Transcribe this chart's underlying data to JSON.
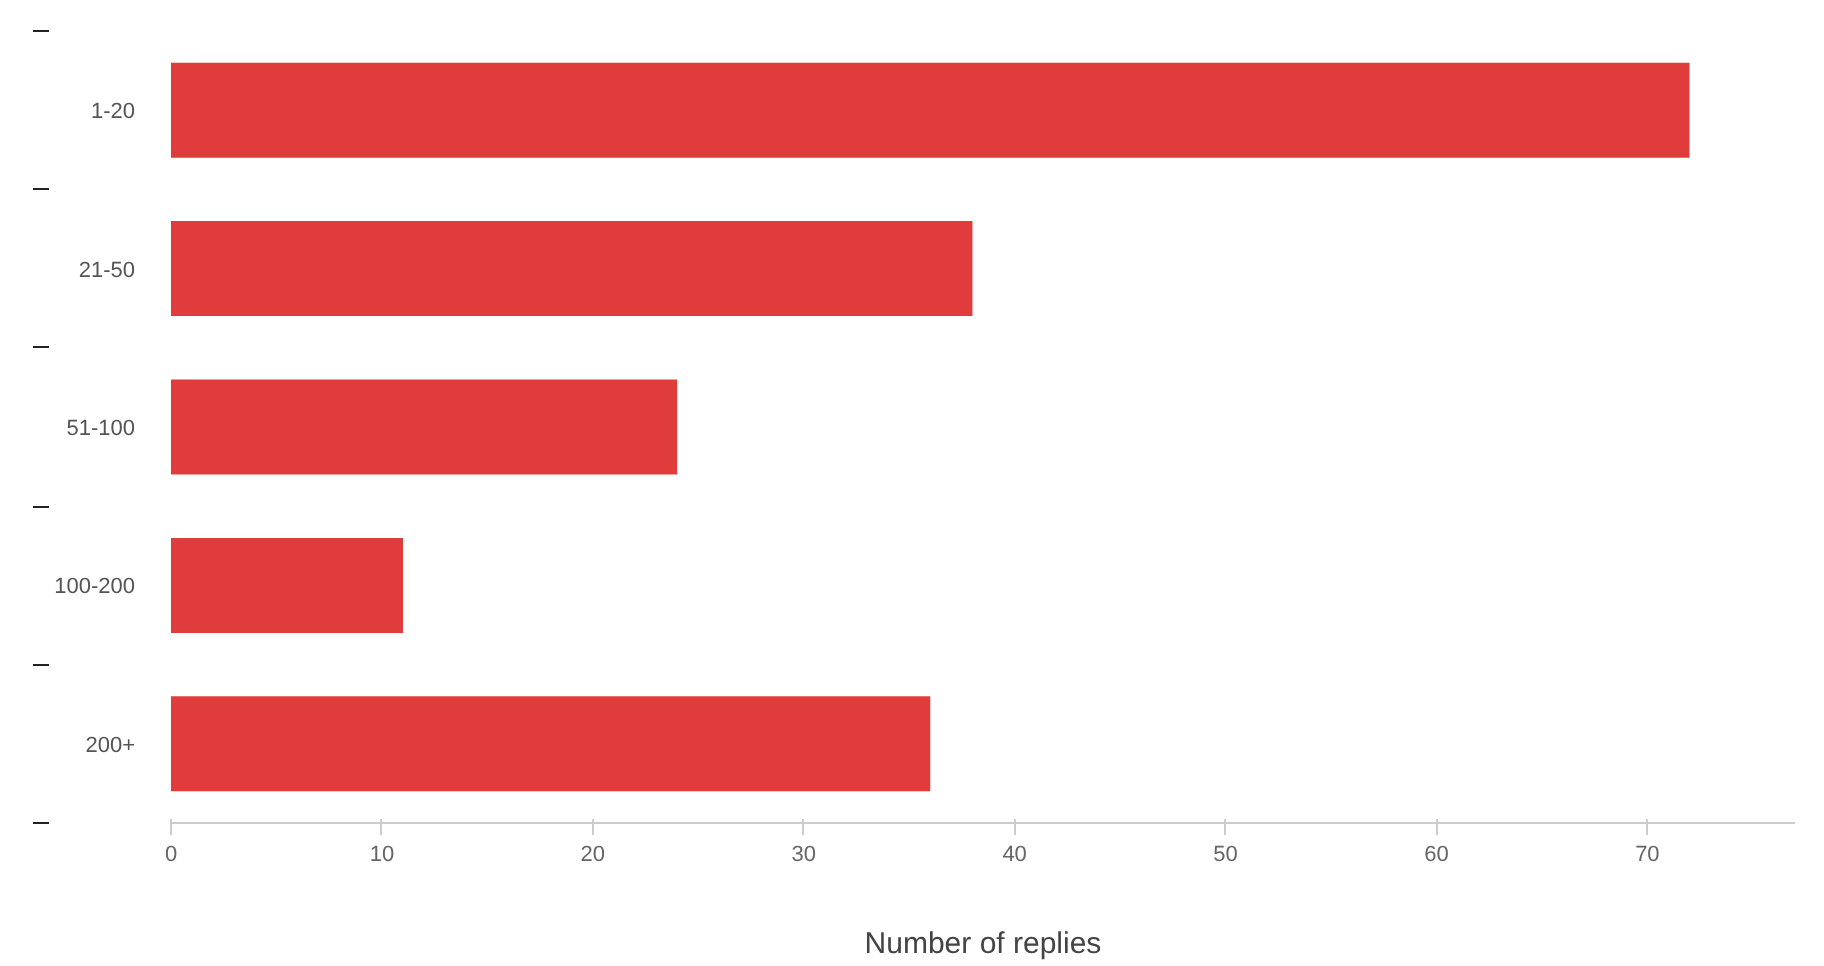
{
  "chart_data": {
    "type": "bar",
    "orientation": "horizontal",
    "categories": [
      "1-20",
      "21-50",
      "51-100",
      "100-200",
      "200+"
    ],
    "values": [
      72,
      38,
      24,
      11,
      36
    ],
    "color": "#e03c3c",
    "xlim": [
      0,
      77
    ],
    "xticks": [
      0,
      10,
      20,
      30,
      40,
      50,
      60,
      70
    ],
    "xlabel": "Number of replies",
    "grid": false
  }
}
